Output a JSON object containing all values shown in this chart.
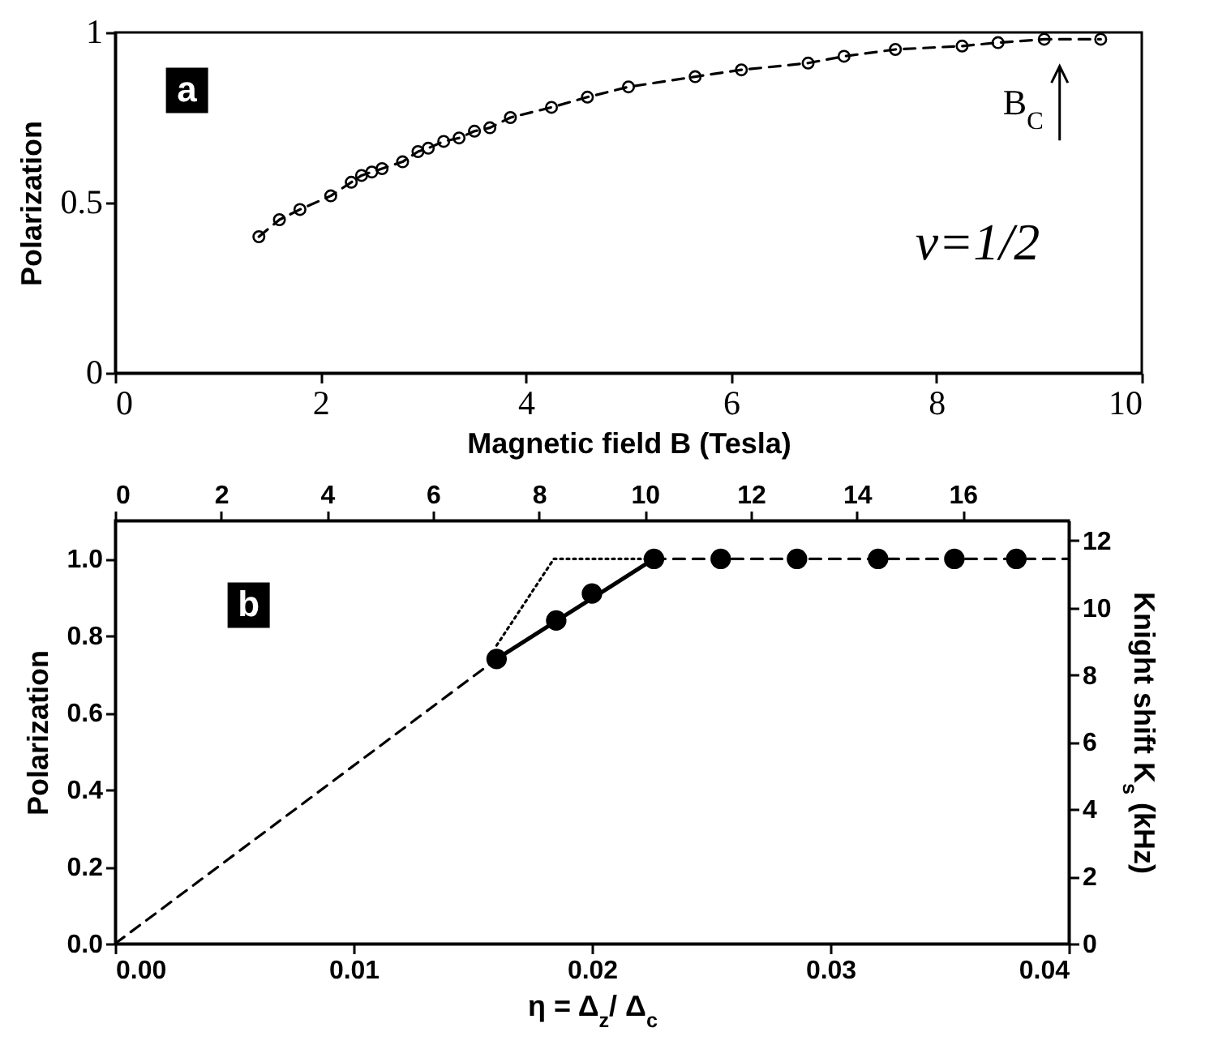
{
  "chart_data": [
    {
      "type": "line",
      "xlabel": "Magnetic field B (Tesla)",
      "ylabel": "Polarization",
      "xlim": [
        0,
        10
      ],
      "ylim": [
        0,
        1
      ],
      "xticks": [
        0,
        2,
        4,
        6,
        8,
        10
      ],
      "yticks": [
        0,
        0.5,
        1
      ],
      "annotations": [
        "a",
        "B$_{C}$",
        "ν=1/2"
      ],
      "series": [
        {
          "color": "#000000",
          "marker": "circle",
          "line_style": "dashed",
          "x": [
            1.4,
            1.6,
            1.8,
            2.1,
            2.3,
            2.4,
            2.5,
            2.6,
            2.8,
            2.95,
            3.05,
            3.2,
            3.35,
            3.5,
            3.65,
            3.85,
            4.25,
            4.6,
            5.0,
            5.65,
            6.1,
            6.75,
            7.1,
            7.6,
            8.25,
            8.6,
            9.05,
            9.6
          ],
          "values": [
            0.4,
            0.45,
            0.48,
            0.52,
            0.56,
            0.58,
            0.59,
            0.6,
            0.62,
            0.65,
            0.66,
            0.68,
            0.69,
            0.71,
            0.72,
            0.75,
            0.78,
            0.81,
            0.84,
            0.87,
            0.89,
            0.91,
            0.93,
            0.95,
            0.96,
            0.97,
            0.98,
            0.98
          ]
        }
      ]
    },
    {
      "type": "line",
      "xlabel": "η = Δ$_{z}$/ Δ$_{c}$",
      "ylabel": "Polarization",
      "y2label": "Knight shift K$_{s}$ (kHz)",
      "xlim": [
        0,
        0.04
      ],
      "xticks": [
        {
          "value": 0,
          "label": "0.00"
        },
        {
          "value": 0.01,
          "label": "0.01"
        },
        {
          "value": 0.02,
          "label": "0.02"
        },
        {
          "value": 0.03,
          "label": "0.03"
        },
        {
          "value": 0.04,
          "label": "0.04"
        }
      ],
      "ylim": [
        0,
        1.1
      ],
      "yticks": [
        {
          "value": 0,
          "label": "0.0"
        },
        {
          "value": 0.2,
          "label": "0.2"
        },
        {
          "value": 0.4,
          "label": "0.4"
        },
        {
          "value": 0.6,
          "label": "0.6"
        },
        {
          "value": 0.8,
          "label": "0.8"
        },
        {
          "value": 1,
          "label": "1.0"
        }
      ],
      "x2lim": [
        0,
        18
      ],
      "x2ticks": [
        0,
        2,
        4,
        6,
        8,
        10,
        12,
        14,
        16
      ],
      "y2lim": [
        0,
        12.6
      ],
      "y2ticks": [
        0,
        2,
        4,
        6,
        8,
        10,
        12
      ],
      "annotations": [
        "b"
      ],
      "series": [
        {
          "type": "scatter",
          "color": "#000000",
          "marker": "circle",
          "x": [
            0.016,
            0.0185,
            0.02,
            0.0226,
            0.0254,
            0.0286,
            0.032,
            0.0352,
            0.0378
          ],
          "values": [
            0.74,
            0.84,
            0.91,
            1,
            1,
            1,
            1,
            1,
            1
          ]
        },
        {
          "color": "#000000",
          "line_style": "solid",
          "x": [
            0.016,
            0.0226
          ],
          "values": [
            0.74,
            1
          ]
        },
        {
          "color": "#000000",
          "line_style": "dashed",
          "x": [
            0,
            0.016
          ],
          "values": [
            0,
            0.74
          ]
        },
        {
          "color": "#000000",
          "line_style": "dashed",
          "x": [
            0.0226,
            0.04
          ],
          "values": [
            1,
            1
          ]
        },
        {
          "color": "#000000",
          "line_style": "dotted",
          "x": [
            0.016,
            0.0184,
            0.0226
          ],
          "values": [
            0.775,
            1,
            1
          ]
        }
      ]
    }
  ]
}
